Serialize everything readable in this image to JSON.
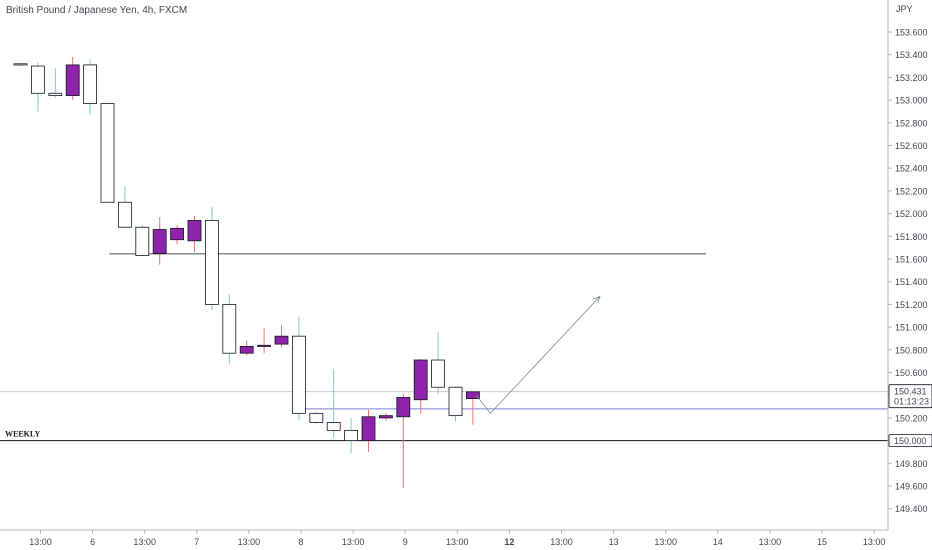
{
  "header": {
    "title": "British Pound / Japanese Yen, 4h, FXCM"
  },
  "colors": {
    "up_body": "#ffffff",
    "down_body": "#8e24aa",
    "outline": "#131722",
    "wick_up": "#e57373",
    "wick_down": "#80cbc4",
    "hline": "#131722",
    "blue_line": "#7b7fd6",
    "arrow": "#7f8c9a",
    "grid": "#e6e8ee"
  },
  "chart_data": {
    "type": "candlestick",
    "symbol": "GBPJPY",
    "interval": "4h",
    "currency": "JPY",
    "ylim": [
      149.2,
      154.0
    ],
    "y_ticks": [
      "153.600",
      "153.400",
      "153.200",
      "153.000",
      "152.800",
      "152.600",
      "152.400",
      "152.200",
      "152.000",
      "151.800",
      "151.600",
      "151.400",
      "151.200",
      "151.000",
      "150.800",
      "150.600",
      "150.400",
      "150.200",
      "150.000",
      "149.800",
      "149.600",
      "149.400"
    ],
    "x_ticks": [
      "13:00",
      "6",
      "13:00",
      "7",
      "13:00",
      "8",
      "13:00",
      "9",
      "13:00",
      "12",
      "13:00",
      "13",
      "13:00",
      "14",
      "13:00",
      "15",
      "13:00"
    ],
    "candles": [
      {
        "o": 153.32,
        "h": 153.32,
        "l": 153.3,
        "c": 153.31
      },
      {
        "o": 153.3,
        "h": 153.33,
        "l": 152.9,
        "c": 153.06
      },
      {
        "o": 153.06,
        "h": 153.28,
        "l": 153.02,
        "c": 153.04
      },
      {
        "o": 153.04,
        "h": 153.38,
        "l": 153.0,
        "c": 153.31
      },
      {
        "o": 153.31,
        "h": 153.36,
        "l": 152.87,
        "c": 152.97
      },
      {
        "o": 152.97,
        "h": 152.97,
        "l": 152.1,
        "c": 152.1
      },
      {
        "o": 152.1,
        "h": 152.24,
        "l": 151.88,
        "c": 151.88
      },
      {
        "o": 151.88,
        "h": 151.9,
        "l": 151.63,
        "c": 151.63
      },
      {
        "o": 151.65,
        "h": 151.97,
        "l": 151.55,
        "c": 151.86
      },
      {
        "o": 151.77,
        "h": 151.9,
        "l": 151.73,
        "c": 151.87
      },
      {
        "o": 151.76,
        "h": 151.98,
        "l": 151.66,
        "c": 151.94
      },
      {
        "o": 151.94,
        "h": 152.06,
        "l": 151.15,
        "c": 151.2
      },
      {
        "o": 151.2,
        "h": 151.29,
        "l": 150.67,
        "c": 150.77
      },
      {
        "o": 150.77,
        "h": 150.88,
        "l": 150.75,
        "c": 150.83
      },
      {
        "o": 150.84,
        "h": 150.99,
        "l": 150.77,
        "c": 150.84
      },
      {
        "o": 150.85,
        "h": 151.02,
        "l": 150.82,
        "c": 150.92
      },
      {
        "o": 150.92,
        "h": 151.09,
        "l": 150.18,
        "c": 150.24
      },
      {
        "o": 150.24,
        "h": 150.25,
        "l": 150.15,
        "c": 150.16
      },
      {
        "o": 150.16,
        "h": 150.63,
        "l": 150.02,
        "c": 150.09
      },
      {
        "o": 150.09,
        "h": 150.2,
        "l": 149.89,
        "c": 150.0
      },
      {
        "o": 150.0,
        "h": 150.27,
        "l": 149.9,
        "c": 150.21
      },
      {
        "o": 150.2,
        "h": 150.24,
        "l": 150.18,
        "c": 150.22
      },
      {
        "o": 150.21,
        "h": 150.41,
        "l": 149.58,
        "c": 150.38
      },
      {
        "o": 150.36,
        "h": 150.72,
        "l": 150.24,
        "c": 150.71
      },
      {
        "o": 150.71,
        "h": 150.96,
        "l": 150.41,
        "c": 150.47
      },
      {
        "o": 150.47,
        "h": 150.48,
        "l": 150.17,
        "c": 150.22
      },
      {
        "o": 150.37,
        "h": 150.43,
        "l": 150.14,
        "c": 150.43
      }
    ],
    "horizontal_lines": [
      {
        "price": 151.645,
        "from_index": 5.1,
        "to_index": 39.4
      },
      {
        "price": 150.0,
        "label": "WEEKLY"
      }
    ],
    "blue_line_price": 150.28,
    "price_lines": [
      150.431,
      150.28
    ],
    "last_price": "150.431",
    "countdown": "01:13:23",
    "level_label": "150.000",
    "projection": {
      "start_index": 26.2,
      "start_price": 150.4,
      "mid_index": 27.0,
      "mid_price": 150.24,
      "end_index": 33.3,
      "end_price": 151.27
    }
  }
}
